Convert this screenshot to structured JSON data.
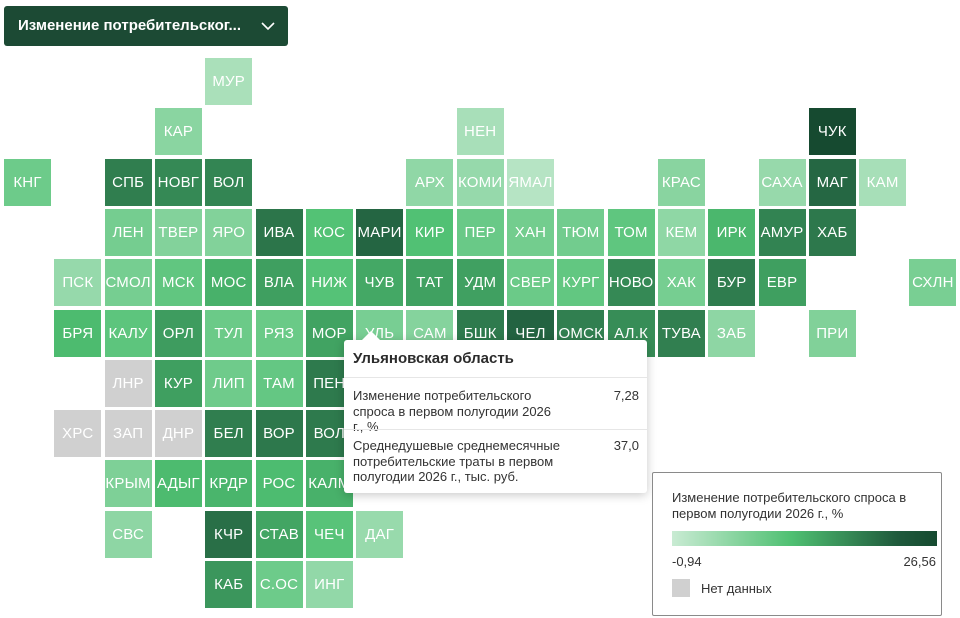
{
  "selector": {
    "label": "Изменение потребительског...",
    "icon": "chevron-down-icon"
  },
  "colors": {
    "background": "#ffffff",
    "selector_bg": "#1c4a34",
    "scale_min": "#c9ebd3",
    "scale_max": "#164a30",
    "no_data": "#d0d0d0"
  },
  "map": {
    "tiles": [
      {
        "code": "МУР",
        "value": 2.2
      },
      {
        "code": "КАР",
        "value": 5.5
      },
      {
        "code": "НЕН",
        "value": 2.4
      },
      {
        "code": "ЧУК",
        "value": 26.56
      },
      {
        "code": "КНГ",
        "value": 8.4
      },
      {
        "code": "СПБ",
        "value": 18.5
      },
      {
        "code": "НОВГ",
        "value": 17.4
      },
      {
        "code": "ВОЛ",
        "value": 17.8
      },
      {
        "code": "АРХ",
        "value": 4.8
      },
      {
        "code": "КОМИ",
        "value": 4.2
      },
      {
        "code": "ЯМАЛ",
        "value": 1.0
      },
      {
        "code": "КРАС",
        "value": 5.6
      },
      {
        "code": "САХА",
        "value": 4.1
      },
      {
        "code": "МАГ",
        "value": 21.0
      },
      {
        "code": "КАМ",
        "value": 2.5
      },
      {
        "code": "ЛЕН",
        "value": 7.6
      },
      {
        "code": "ТВЕР",
        "value": 6.2
      },
      {
        "code": "ЯРО",
        "value": 6.3
      },
      {
        "code": "ИВА",
        "value": 19.5
      },
      {
        "code": "КОС",
        "value": 11.0
      },
      {
        "code": "МАРИ",
        "value": 21.3
      },
      {
        "code": "КИР",
        "value": 11.2
      },
      {
        "code": "ПЕР",
        "value": 8.8
      },
      {
        "code": "ХАН",
        "value": 7.8
      },
      {
        "code": "ТЮМ",
        "value": 7.9
      },
      {
        "code": "ТОМ",
        "value": 9.8
      },
      {
        "code": "КЕМ",
        "value": 4.9
      },
      {
        "code": "ИРК",
        "value": 12.4
      },
      {
        "code": "АМУР",
        "value": 18.0
      },
      {
        "code": "ХАБ",
        "value": 19.2
      },
      {
        "code": "ПСК",
        "value": 4.2
      },
      {
        "code": "СМОЛ",
        "value": 7.5
      },
      {
        "code": "МСК",
        "value": 9.6
      },
      {
        "code": "МОС",
        "value": 13.0
      },
      {
        "code": "ВЛА",
        "value": 15.0
      },
      {
        "code": "НИЖ",
        "value": 10.8
      },
      {
        "code": "ЧУВ",
        "value": 14.0
      },
      {
        "code": "ТАТ",
        "value": 14.8
      },
      {
        "code": "УДМ",
        "value": 14.9
      },
      {
        "code": "СВЕР",
        "value": 8.6
      },
      {
        "code": "КУРГ",
        "value": 9.5
      },
      {
        "code": "НОВО",
        "value": 17.4
      },
      {
        "code": "ХАК",
        "value": 7.5
      },
      {
        "code": "БУР",
        "value": 18.8
      },
      {
        "code": "ЕВР",
        "value": 15.0
      },
      {
        "code": "СХЛН",
        "value": 7.2
      },
      {
        "code": "БРЯ",
        "value": 12.0
      },
      {
        "code": "КАЛУ",
        "value": 10.0
      },
      {
        "code": "ОРЛ",
        "value": 15.3
      },
      {
        "code": "ТУЛ",
        "value": 8.6
      },
      {
        "code": "РЯЗ",
        "value": 8.7
      },
      {
        "code": "МОР",
        "value": 14.6
      },
      {
        "code": "УЛЬ",
        "value": 7.28
      },
      {
        "code": "САМ",
        "value": 6.0
      },
      {
        "code": "БШК",
        "value": 19.0
      },
      {
        "code": "ЧЕЛ",
        "value": 21.5
      },
      {
        "code": "ОМСК",
        "value": 18.4
      },
      {
        "code": "АЛ.К",
        "value": 16.9
      },
      {
        "code": "ТУВА",
        "value": 18.4
      },
      {
        "code": "ЗАБ",
        "value": 5.0
      },
      {
        "code": "ПРИ",
        "value": 6.4
      },
      {
        "code": "ЛНР",
        "value": null
      },
      {
        "code": "КУР",
        "value": 15.0
      },
      {
        "code": "ЛИП",
        "value": 8.2
      },
      {
        "code": "ТАМ",
        "value": 9.3
      },
      {
        "code": "ПЕН",
        "value": 19.0
      },
      {
        "code": "ХРС",
        "value": null
      },
      {
        "code": "ЗАП",
        "value": null
      },
      {
        "code": "ДНР",
        "value": null
      },
      {
        "code": "БЕЛ",
        "value": 18.6
      },
      {
        "code": "ВОР",
        "value": 19.2
      },
      {
        "code": "ВОЛ",
        "value": 19.0
      },
      {
        "code": "КРЫМ",
        "value": 6.7
      },
      {
        "code": "АДЫГ",
        "value": 12.0
      },
      {
        "code": "КРДР",
        "value": 12.6
      },
      {
        "code": "РОС",
        "value": 11.9
      },
      {
        "code": "КАЛМ",
        "value": 13.0
      },
      {
        "code": "СВС",
        "value": 5.0
      },
      {
        "code": "КЧР",
        "value": 20.2
      },
      {
        "code": "СТАВ",
        "value": 14.4
      },
      {
        "code": "ЧЕЧ",
        "value": 10.5
      },
      {
        "code": "ДАГ",
        "value": 4.0
      },
      {
        "code": "КАБ",
        "value": 16.0
      },
      {
        "code": "С.ОС",
        "value": 8.4
      },
      {
        "code": "ИНГ",
        "value": 4.6
      }
    ]
  },
  "tooltip": {
    "title": "Ульяновская область",
    "rows": [
      {
        "label": "Изменение потребительского спроса в первом полугодии 2026 г., %",
        "value": "7,28"
      },
      {
        "label": "Среднедушевые среднемесячные потребительские траты в первом полугодии 2026 г., тыс. руб.",
        "value": "37,0"
      }
    ]
  },
  "legend": {
    "title": "Изменение потребительского спроса в первом полугодии 2026 г., %",
    "min_label": "-0,94",
    "max_label": "26,56",
    "min": -0.94,
    "max": 26.56,
    "no_data_label": "Нет данных"
  }
}
